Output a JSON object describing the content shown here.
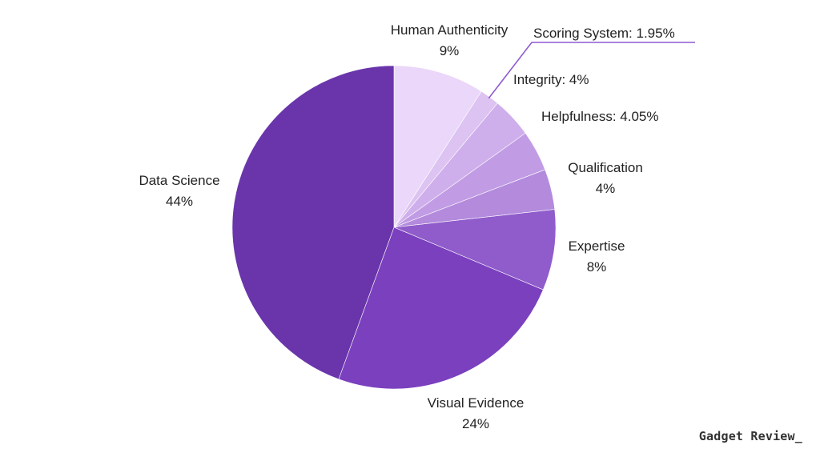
{
  "chart_data": {
    "type": "pie",
    "start_angle_deg": 0,
    "direction": "clockwise",
    "slices": [
      {
        "label": "Human Authenticity",
        "value": 9,
        "value_text": "9%",
        "color": "#ebd7fa",
        "label_style": "stacked"
      },
      {
        "label": "Scoring System",
        "value": 1.95,
        "value_text": "1.95%",
        "color": "#dcc3f2",
        "label_style": "inline",
        "leader_line": true
      },
      {
        "label": "Integrity",
        "value": 4,
        "value_text": "4%",
        "color": "#cfaeec",
        "label_style": "inline"
      },
      {
        "label": "Helpfulness",
        "value": 4.05,
        "value_text": "4.05%",
        "color": "#c19ce4",
        "label_style": "inline"
      },
      {
        "label": "Qualification",
        "value": 4,
        "value_text": "4%",
        "color": "#b48add",
        "label_style": "stacked"
      },
      {
        "label": "Expertise",
        "value": 8,
        "value_text": "8%",
        "color": "#905ccb",
        "label_style": "stacked"
      },
      {
        "label": "Visual Evidence",
        "value": 24,
        "value_text": "24%",
        "color": "#7b40be",
        "label_style": "stacked"
      },
      {
        "label": "Data Science",
        "value": 44,
        "value_text": "44%",
        "color": "#6a35ab",
        "label_style": "stacked"
      }
    ],
    "leader_color": "#8e5ad0"
  },
  "watermark": {
    "text": "Gadget Review_"
  }
}
